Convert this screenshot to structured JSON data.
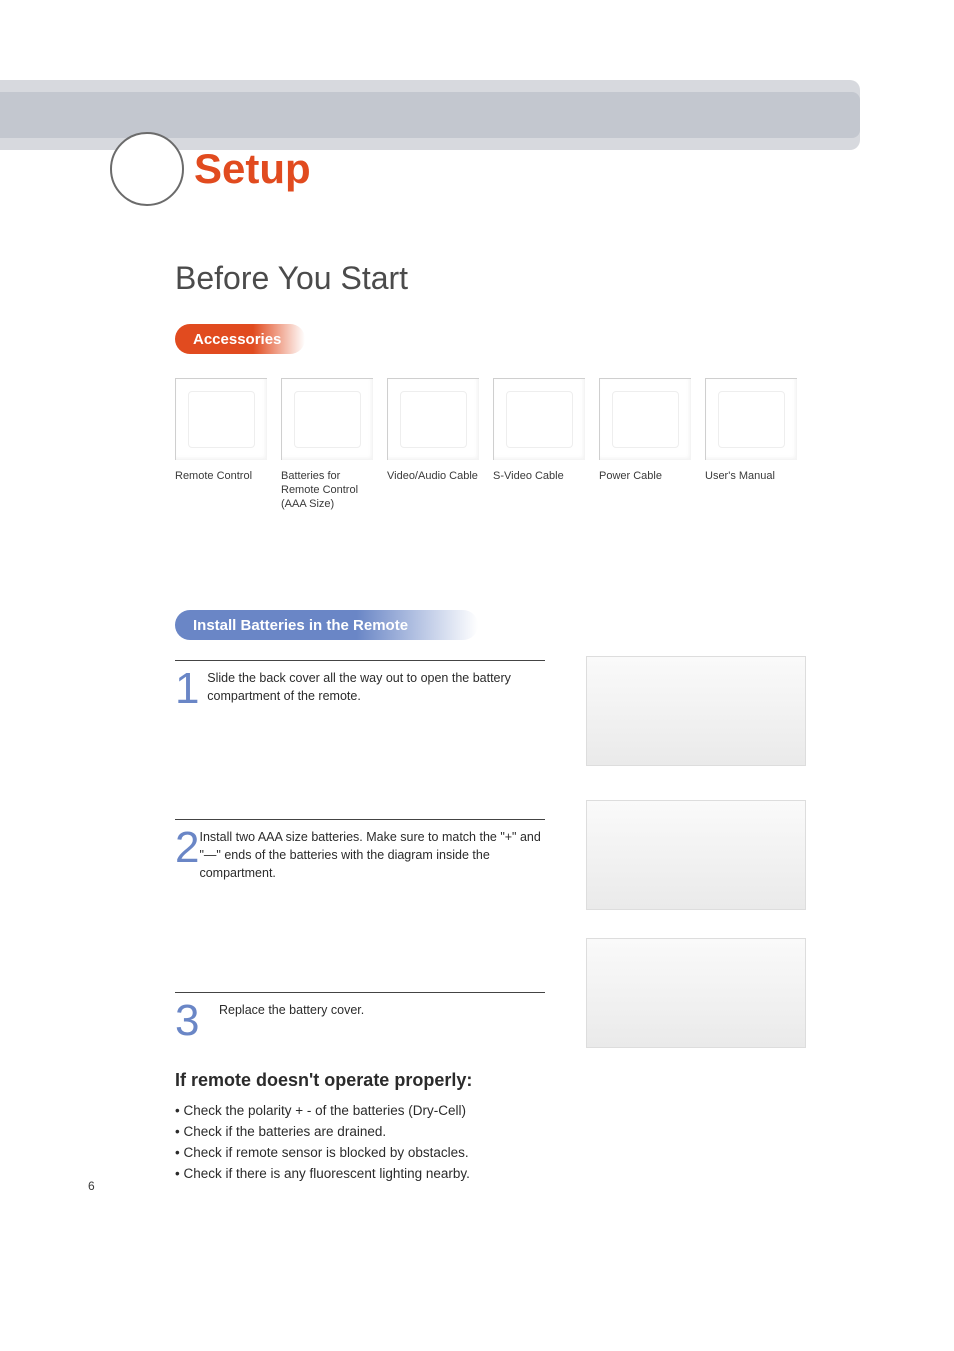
{
  "page": {
    "number": "6",
    "chapter_title": "Setup",
    "section_title": "Before You Start"
  },
  "colors": {
    "accent_orange": "#e14b1f",
    "accent_blue": "#6a86c6",
    "band_outer": "#d7d9de",
    "band_inner": "#c3c7cf",
    "text": "#2b2b2b",
    "label_text": "#3a3a3a"
  },
  "accessories": {
    "heading": "Accessories",
    "items": [
      {
        "label": "Remote Control"
      },
      {
        "label": "Batteries for Remote Control (AAA Size)"
      },
      {
        "label": "Video/Audio Cable"
      },
      {
        "label": "S-Video Cable"
      },
      {
        "label": "Power Cable"
      },
      {
        "label": "User's Manual"
      }
    ]
  },
  "install": {
    "heading": "Install Batteries in the Remote",
    "steps": [
      {
        "num": "1",
        "text": "Slide the back cover all the way out to open the battery compartment of the remote."
      },
      {
        "num": "2",
        "text": "Install two AAA size batteries. Make sure to match the \"+\" and \"—\" ends of the batteries with the diagram inside the compartment."
      },
      {
        "num": "3",
        "text": "Replace the battery cover."
      }
    ]
  },
  "troubleshoot": {
    "heading": "If remote doesn't operate properly:",
    "bullets": [
      "Check the polarity + - of the batteries (Dry-Cell)",
      "Check if the batteries are drained.",
      "Check if remote sensor is blocked by obstacles.",
      "Check if there is any fluorescent lighting nearby."
    ]
  }
}
